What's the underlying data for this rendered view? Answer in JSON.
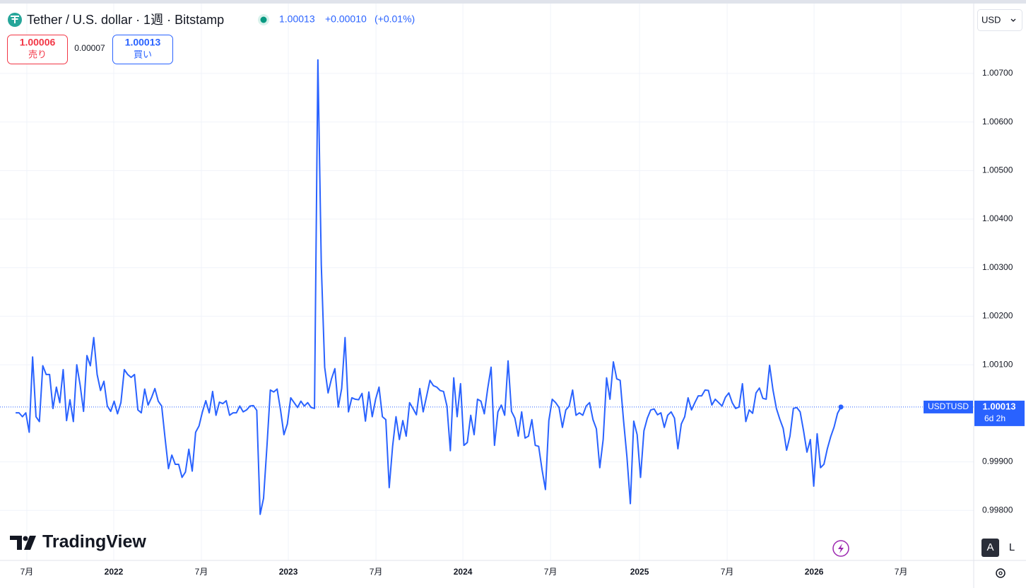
{
  "header": {
    "title": "Tether / U.S. dollar · 1週 · Bitstamp",
    "price": "1.00013",
    "change": "+0.00010",
    "change_pct": "(+0.01%)"
  },
  "trade": {
    "sell_price": "1.00006",
    "sell_label": "売り",
    "spread": "0.00007",
    "buy_price": "1.00013",
    "buy_label": "買い"
  },
  "ui": {
    "currency": "USD",
    "logo": "TradingView",
    "auto_button": "A",
    "log_button": "L"
  },
  "chart_data": {
    "type": "line",
    "series": [
      {
        "name": "USDTUSD",
        "color": "#2962ff",
        "values": [
          1.00001,
          1.00001,
          0.99993,
          1.00001,
          0.99961,
          1.00116,
          0.99993,
          0.99983,
          1.00098,
          1.0008,
          1.0008,
          1.0001,
          1.00054,
          1.00022,
          1.0009,
          0.99985,
          1.00028,
          0.99983,
          1.001,
          1.00058,
          1.00004,
          1.00119,
          1.00098,
          1.00156,
          1.0008,
          1.00047,
          1.00066,
          1.00015,
          1.00004,
          1.00025,
          0.99999,
          1.00022,
          1.0009,
          1.0008,
          1.00074,
          1.0008,
          1.00007,
          1.00001,
          1.0005,
          1.00017,
          1.00032,
          1.00051,
          1.00025,
          1.00015,
          0.99949,
          0.99886,
          0.99914,
          0.99895,
          0.99895,
          0.99868,
          0.99879,
          0.99926,
          0.99881,
          0.99961,
          0.99974,
          1.00003,
          1.00026,
          1.00001,
          1.00045,
          0.99996,
          1.00023,
          1.0002,
          1.00026,
          0.99996,
          1.00001,
          1.00001,
          1.00015,
          1.00003,
          1.00007,
          1.00015,
          1.00016,
          1.00006,
          0.99792,
          0.99825,
          0.99932,
          1.00048,
          1.00044,
          1.0005,
          1.00007,
          0.99956,
          0.99978,
          1.00032,
          1.00022,
          1.00012,
          1.00025,
          1.00015,
          1.00022,
          1.00012,
          1.0001,
          1.00728,
          1.00306,
          1.00095,
          1.00042,
          1.00071,
          1.00092,
          1.00013,
          1.00051,
          1.00156,
          1.00003,
          1.00032,
          1.00029,
          1.00028,
          1.00041,
          0.99984,
          1.00044,
          0.99993,
          1.00029,
          1.00054,
          0.99993,
          0.99987,
          0.99847,
          0.99932,
          0.99993,
          0.99946,
          0.99985,
          0.99953,
          1.00022,
          1.0001,
          0.99997,
          1.00051,
          1.00003,
          1.00035,
          1.00068,
          1.00057,
          1.00054,
          1.00047,
          1.00045,
          1.00015,
          0.99923,
          1.00073,
          0.99993,
          1.00061,
          0.99934,
          0.9994,
          0.99996,
          0.99956,
          1.00029,
          1.00025,
          0.99999,
          1.00051,
          1.00095,
          0.99934,
          1.00003,
          1.00017,
          0.99996,
          1.00108,
          1.00004,
          0.9999,
          0.99953,
          1.00003,
          0.99949,
          0.99953,
          0.99987,
          0.99934,
          0.99932,
          0.99884,
          0.99843,
          0.99985,
          1.00029,
          1.00022,
          1.00012,
          0.99971,
          1.00007,
          1.00015,
          1.00048,
          0.99996,
          1.00001,
          0.99996,
          1.00015,
          1.00022,
          0.99987,
          0.99968,
          0.99888,
          0.99946,
          1.00073,
          1.00029,
          1.00106,
          1.00071,
          1.00068,
          0.99985,
          0.9991,
          0.99814,
          0.99984,
          0.99956,
          0.99868,
          0.99964,
          0.9999,
          1.00007,
          1.00009,
          0.99997,
          1.00001,
          0.99971,
          0.99996,
          1.00003,
          0.9999,
          0.99927,
          0.99978,
          0.99993,
          1.00032,
          1.00007,
          1.00022,
          1.00036,
          1.00036,
          1.00048,
          1.00047,
          1.00017,
          1.00029,
          1.00022,
          1.00015,
          1.00033,
          1.00042,
          1.00022,
          1.0001,
          1.00013,
          1.00061,
          0.99983,
          1.00007,
          1.0,
          1.00042,
          1.00052,
          1.00031,
          1.00029,
          1.00099,
          1.00048,
          1.0001,
          0.99988,
          0.99969,
          0.99924,
          0.99953,
          1.0001,
          1.00012,
          1.00003,
          0.99964,
          0.9992,
          0.99946,
          0.9985,
          0.99958,
          0.99888,
          0.99895,
          0.99927,
          0.99952,
          0.99972,
          1.0,
          1.00013
        ]
      }
    ],
    "xlim": [
      -4.6,
      282.1
    ],
    "xticks": [
      {
        "value": 3.3,
        "label": "7月"
      },
      {
        "value": 28.9,
        "label": "2022"
      },
      {
        "value": 54.7,
        "label": "7月"
      },
      {
        "value": 80.3,
        "label": "2023"
      },
      {
        "value": 106.1,
        "label": "7月"
      },
      {
        "value": 131.7,
        "label": "2024"
      },
      {
        "value": 157.5,
        "label": "7月"
      },
      {
        "value": 183.7,
        "label": "2025"
      },
      {
        "value": 209.5,
        "label": "7月"
      },
      {
        "value": 235.1,
        "label": "2026"
      },
      {
        "value": 260.7,
        "label": "7月"
      }
    ],
    "ylim": [
      0.99697,
      1.00844
    ],
    "yticks": [
      {
        "value": 0.998,
        "label": "0.99800"
      },
      {
        "value": 0.999,
        "label": "0.99900"
      },
      {
        "value": 1.001,
        "label": "1.00100"
      },
      {
        "value": 1.002,
        "label": "1.00200"
      },
      {
        "value": 1.003,
        "label": "1.00300"
      },
      {
        "value": 1.004,
        "label": "1.00400"
      },
      {
        "value": 1.005,
        "label": "1.00500"
      },
      {
        "value": 1.006,
        "label": "1.00600"
      },
      {
        "value": 1.007,
        "label": "1.00700"
      }
    ],
    "grid": true,
    "price_label": {
      "value": "1.00013",
      "countdown": "6d 2h"
    }
  }
}
